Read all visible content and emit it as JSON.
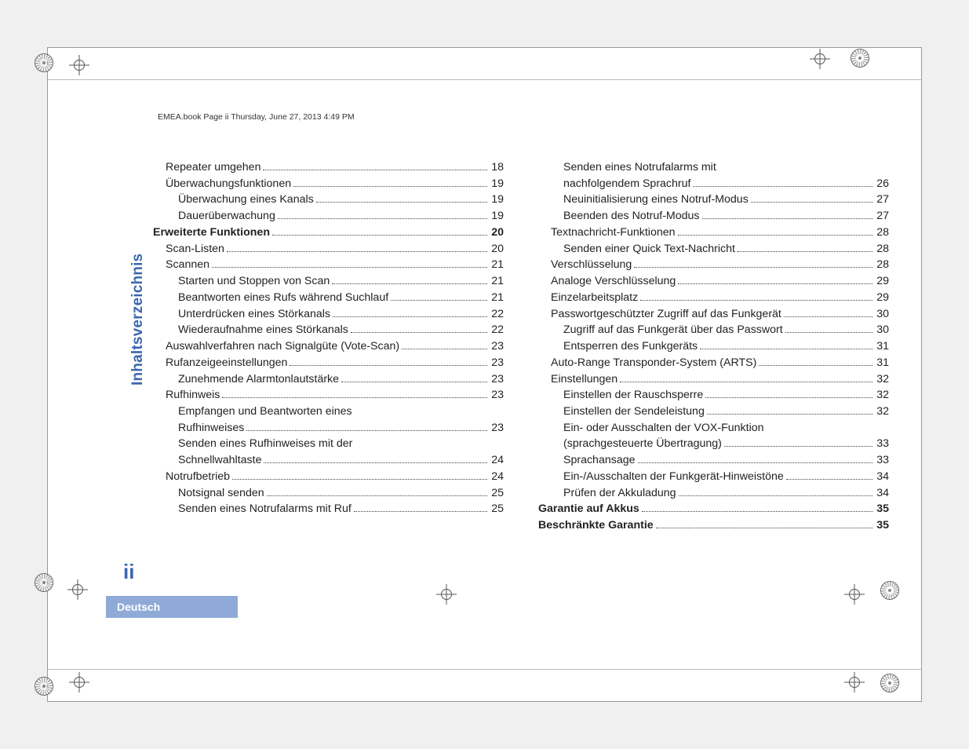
{
  "header": "EMEA.book  Page ii  Thursday, June 27, 2013  4:49 PM",
  "sidebar_title": "Inhaltsverzeichnis",
  "page_number": "ii",
  "language_label": "Deutsch",
  "style": {
    "page_bg": "#ffffff",
    "outer_bg": "#f0f0f0",
    "accent_color": "#3a66b0",
    "lang_bar_bg": "#8faad6",
    "text_color": "#222222",
    "font_family": "Arial",
    "body_fontsize_pt": 11,
    "sidebar_fontsize_pt": 14,
    "pagenum_fontsize_pt": 20
  },
  "toc": [
    {
      "text": "Repeater umgehen",
      "page": "18",
      "indent": 1,
      "bold": false
    },
    {
      "text": "Überwachungsfunktionen",
      "page": "19",
      "indent": 1,
      "bold": false
    },
    {
      "text": "Überwachung eines Kanals",
      "page": "19",
      "indent": 2,
      "bold": false
    },
    {
      "text": "Dauerüberwachung",
      "page": "19",
      "indent": 2,
      "bold": false
    },
    {
      "text": "Erweiterte Funktionen",
      "page": "20",
      "indent": 0,
      "bold": true
    },
    {
      "text": "Scan-Listen",
      "page": "20",
      "indent": 1,
      "bold": false
    },
    {
      "text": "Scannen",
      "page": "21",
      "indent": 1,
      "bold": false
    },
    {
      "text": "Starten und Stoppen von Scan",
      "page": "21",
      "indent": 2,
      "bold": false
    },
    {
      "text": "Beantworten eines Rufs während Suchlauf",
      "page": "21",
      "indent": 2,
      "bold": false
    },
    {
      "text": "Unterdrücken eines Störkanals",
      "page": "22",
      "indent": 2,
      "bold": false
    },
    {
      "text": "Wiederaufnahme eines Störkanals",
      "page": "22",
      "indent": 2,
      "bold": false
    },
    {
      "text": "Auswahlverfahren nach Signalgüte (Vote-Scan)",
      "page": "23",
      "indent": 1,
      "bold": false
    },
    {
      "text": "Rufanzeigeeinstellungen",
      "page": "23",
      "indent": 1,
      "bold": false
    },
    {
      "text": "Zunehmende Alarmtonlautstärke",
      "page": "23",
      "indent": 2,
      "bold": false
    },
    {
      "text": "Rufhinweis",
      "page": "23",
      "indent": 1,
      "bold": false
    },
    {
      "text": "Empfangen und Beantworten eines Rufhinweises",
      "page": "23",
      "indent": 2,
      "bold": false,
      "twoline": true,
      "line1": "Empfangen und Beantworten eines",
      "line2": "Rufhinweises"
    },
    {
      "text": "Senden eines Rufhinweises mit der Schnellwahltaste",
      "page": "24",
      "indent": 2,
      "bold": false,
      "twoline": true,
      "line1": "Senden eines Rufhinweises mit der",
      "line2": "Schnellwahltaste"
    },
    {
      "text": "Notrufbetrieb",
      "page": "24",
      "indent": 1,
      "bold": false
    },
    {
      "text": "Notsignal senden",
      "page": "25",
      "indent": 2,
      "bold": false
    },
    {
      "text": "Senden eines Notrufalarms mit Ruf",
      "page": "25",
      "indent": 2,
      "bold": false
    },
    {
      "text": "Senden eines Notrufalarms mit nachfolgendem Sprachruf",
      "page": "26",
      "indent": 2,
      "bold": false,
      "twoline": true,
      "line1": "Senden eines Notrufalarms mit",
      "line2": "nachfolgendem Sprachruf"
    },
    {
      "text": "Neuinitialisierung eines Notruf-Modus",
      "page": "27",
      "indent": 2,
      "bold": false
    },
    {
      "text": "Beenden des Notruf-Modus",
      "page": "27",
      "indent": 2,
      "bold": false
    },
    {
      "text": "Textnachricht-Funktionen",
      "page": "28",
      "indent": 1,
      "bold": false
    },
    {
      "text": "Senden einer Quick Text-Nachricht",
      "page": "28",
      "indent": 2,
      "bold": false
    },
    {
      "text": "Verschlüsselung",
      "page": "28",
      "indent": 1,
      "bold": false
    },
    {
      "text": "Analoge Verschlüsselung",
      "page": "29",
      "indent": 1,
      "bold": false
    },
    {
      "text": "Einzelarbeitsplatz",
      "page": "29",
      "indent": 1,
      "bold": false
    },
    {
      "text": "Passwortgeschützter Zugriff auf das Funkgerät",
      "page": "30",
      "indent": 1,
      "bold": false
    },
    {
      "text": "Zugriff auf das Funkgerät über das Passwort",
      "page": "30",
      "indent": 2,
      "bold": false
    },
    {
      "text": "Entsperren des Funkgeräts",
      "page": "31",
      "indent": 2,
      "bold": false
    },
    {
      "text": "Auto-Range Transponder-System (ARTS)",
      "page": "31",
      "indent": 1,
      "bold": false
    },
    {
      "text": "Einstellungen",
      "page": "32",
      "indent": 1,
      "bold": false
    },
    {
      "text": "Einstellen der Rauschsperre",
      "page": "32",
      "indent": 2,
      "bold": false
    },
    {
      "text": "Einstellen der Sendeleistung",
      "page": "32",
      "indent": 2,
      "bold": false
    },
    {
      "text": "Ein- oder Ausschalten der VOX-Funktion (sprachgesteuerte Übertragung)",
      "page": "33",
      "indent": 2,
      "bold": false,
      "twoline": true,
      "line1": "Ein- oder Ausschalten der VOX-Funktion",
      "line2": "(sprachgesteuerte Übertragung)"
    },
    {
      "text": "Sprachansage",
      "page": "33",
      "indent": 2,
      "bold": false
    },
    {
      "text": "Ein-/Ausschalten der Funkgerät-Hinweistöne",
      "page": "34",
      "indent": 2,
      "bold": false
    },
    {
      "text": "Prüfen der Akkuladung",
      "page": "34",
      "indent": 2,
      "bold": false
    },
    {
      "text": "Garantie auf Akkus",
      "page": "35",
      "indent": 0,
      "bold": true
    },
    {
      "text": "Beschränkte Garantie",
      "page": "35",
      "indent": 0,
      "bold": true
    }
  ]
}
